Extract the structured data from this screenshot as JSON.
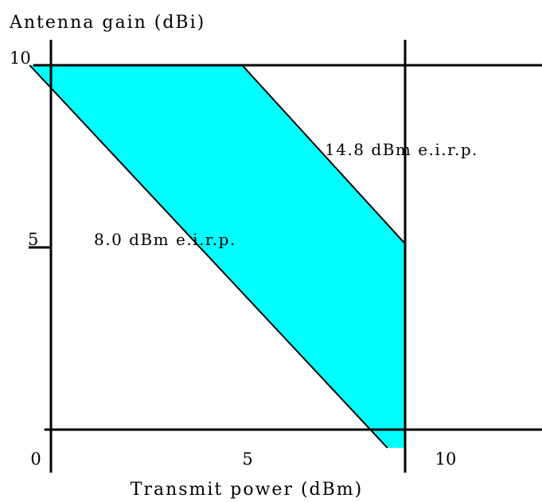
{
  "chart_data": {
    "type": "area",
    "xlabel": "Transmit power (dBm)",
    "ylabel": "Antenna gain (dBi)",
    "x_ticks": [
      "0",
      "5",
      "10"
    ],
    "y_ticks": [
      "10",
      "5"
    ],
    "xlim": [
      -0.5,
      14
    ],
    "ylim": [
      -1.4,
      10.7
    ],
    "region": {
      "fill_color": "#00ffff",
      "boundaries": [
        {
          "label": "8.0 dBm e.i.r.p.",
          "points": [
            [
              -0.6,
              10
            ],
            [
              9.5,
              -0.5
            ]
          ]
        },
        {
          "label": "14.8 dBm e.i.r.p.",
          "points": [
            [
              5.4,
              10
            ],
            [
              10,
              5.1
            ]
          ]
        }
      ],
      "vertices": [
        [
          -0.6,
          10
        ],
        [
          5.4,
          10
        ],
        [
          10,
          5.1
        ],
        [
          10,
          -0.5
        ],
        [
          9.5,
          -0.5
        ]
      ]
    },
    "reference_lines": {
      "horizontal_y": [
        10,
        0
      ],
      "vertical_x": [
        0,
        10
      ]
    },
    "grid": false,
    "legend": "none"
  }
}
